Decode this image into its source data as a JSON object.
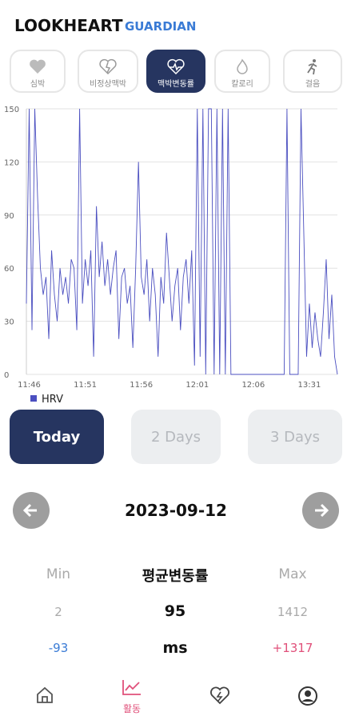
{
  "header": {
    "title": "LOOKHEART",
    "subtitle": "GUARDIAN"
  },
  "tabs": [
    "심박",
    "비정상맥박",
    "맥박변동률",
    "칼로리",
    "걸음"
  ],
  "chart_data": {
    "type": "line",
    "categories": [
      null,
      "11:46",
      null,
      null,
      null,
      null,
      null,
      null,
      null,
      null,
      null,
      null,
      null,
      null,
      null,
      null,
      null,
      null,
      null,
      null,
      null,
      "11:51",
      null,
      null,
      null,
      null,
      null,
      null,
      null,
      null,
      null,
      null,
      null,
      null,
      null,
      null,
      null,
      null,
      null,
      null,
      null,
      "11:56",
      null,
      null,
      null,
      null,
      null,
      null,
      null,
      null,
      null,
      null,
      null,
      null,
      null,
      null,
      null,
      null,
      null,
      null,
      null,
      "12:01",
      null,
      null,
      null,
      null,
      null,
      null,
      null,
      null,
      null,
      null,
      null,
      null,
      null,
      null,
      null,
      null,
      null,
      null,
      null,
      "12:06",
      null,
      null,
      null,
      null,
      null,
      null,
      null,
      null,
      null,
      null,
      null,
      null,
      null,
      null,
      null,
      null,
      null,
      null,
      null,
      "13:31",
      null,
      null,
      null,
      null,
      null,
      null,
      null,
      null,
      null,
      null
    ],
    "series": [
      {
        "name": "HRV",
        "color": "#4b4fc0",
        "values": [
          40,
          150,
          25,
          150,
          100,
          60,
          45,
          55,
          20,
          70,
          45,
          30,
          60,
          45,
          55,
          40,
          65,
          60,
          25,
          150,
          40,
          65,
          50,
          70,
          10,
          95,
          55,
          75,
          50,
          65,
          45,
          60,
          70,
          20,
          55,
          60,
          40,
          50,
          15,
          60,
          120,
          55,
          45,
          65,
          30,
          60,
          45,
          10,
          55,
          40,
          80,
          55,
          30,
          50,
          60,
          25,
          55,
          65,
          40,
          70,
          5,
          150,
          10,
          150,
          0,
          150,
          150,
          0,
          150,
          0,
          150,
          0,
          150,
          0,
          0,
          0,
          0,
          0,
          0,
          0,
          0,
          0,
          0,
          0,
          0,
          0,
          0,
          0,
          0,
          0,
          0,
          0,
          0,
          150,
          0,
          0,
          0,
          0,
          150,
          80,
          10,
          40,
          15,
          35,
          20,
          10,
          35,
          65,
          20,
          45,
          10,
          0
        ]
      }
    ],
    "ylim": [
      0,
      150
    ],
    "yticks": [
      0,
      30,
      60,
      90,
      120,
      150
    ],
    "grid": true,
    "legend": "bottom-left"
  },
  "periods": [
    "Today",
    "2 Days",
    "3 Days"
  ],
  "date": "2023-09-12",
  "stats": {
    "labels": [
      "Min",
      "평균변동률",
      "Max"
    ],
    "values": [
      "2",
      "95",
      "1412"
    ],
    "diffs": [
      "-93",
      "ms",
      "+1317"
    ]
  },
  "nav": {
    "active_label": "활동"
  }
}
